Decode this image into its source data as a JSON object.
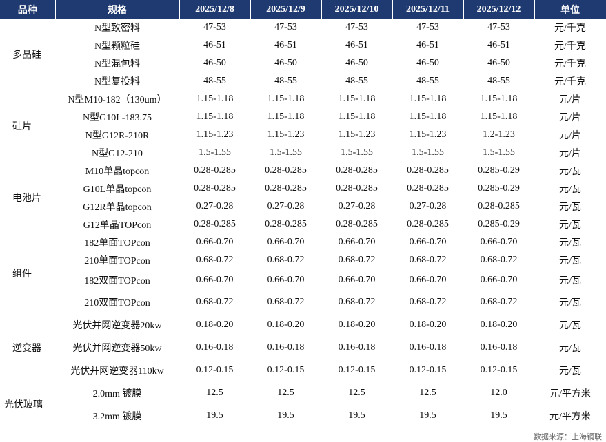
{
  "header": [
    "品种",
    "规格",
    "2025/12/8",
    "2025/12/9",
    "2025/12/10",
    "2025/12/11",
    "2025/12/12",
    "单位"
  ],
  "groups": [
    {
      "name": "多晶硅",
      "rows": [
        {
          "spec": "N型致密料",
          "values": [
            "47-53",
            "47-53",
            "47-53",
            "47-53",
            "47-53"
          ],
          "unit": "元/千克"
        },
        {
          "spec": "N型颗粒硅",
          "values": [
            "46-51",
            "46-51",
            "46-51",
            "46-51",
            "46-51"
          ],
          "unit": "元/千克"
        },
        {
          "spec": "N型混包料",
          "values": [
            "46-50",
            "46-50",
            "46-50",
            "46-50",
            "46-50"
          ],
          "unit": "元/千克"
        },
        {
          "spec": "N型复投料",
          "values": [
            "48-55",
            "48-55",
            "48-55",
            "48-55",
            "48-55"
          ],
          "unit": "元/千克"
        }
      ]
    },
    {
      "name": "硅片",
      "rows": [
        {
          "spec": "N型M10-182（130um）",
          "values": [
            "1.15-1.18",
            "1.15-1.18",
            "1.15-1.18",
            "1.15-1.18",
            "1.15-1.18"
          ],
          "unit": "元/片"
        },
        {
          "spec": "N型G10L-183.75",
          "values": [
            "1.15-1.18",
            "1.15-1.18",
            "1.15-1.18",
            "1.15-1.18",
            "1.15-1.18"
          ],
          "unit": "元/片"
        },
        {
          "spec": "N型G12R-210R",
          "values": [
            "1.15-1.23",
            "1.15-1.23",
            "1.15-1.23",
            "1.15-1.23",
            "1.2-1.23"
          ],
          "unit": "元/片"
        },
        {
          "spec": "N型G12-210",
          "values": [
            "1.5-1.55",
            "1.5-1.55",
            "1.5-1.55",
            "1.5-1.55",
            "1.5-1.55"
          ],
          "unit": "元/片"
        }
      ]
    },
    {
      "name": "电池片",
      "rows": [
        {
          "spec": "M10单晶topcon",
          "values": [
            "0.28-0.285",
            "0.28-0.285",
            "0.28-0.285",
            "0.28-0.285",
            "0.285-0.29"
          ],
          "unit": "元/瓦"
        },
        {
          "spec": "G10L单晶topcon",
          "values": [
            "0.28-0.285",
            "0.28-0.285",
            "0.28-0.285",
            "0.28-0.285",
            "0.285-0.29"
          ],
          "unit": "元/瓦"
        },
        {
          "spec": "G12R单晶topcon",
          "values": [
            "0.27-0.28",
            "0.27-0.28",
            "0.27-0.28",
            "0.27-0.28",
            "0.28-0.285"
          ],
          "unit": "元/瓦"
        },
        {
          "spec": "G12单晶TOPcon",
          "values": [
            "0.28-0.285",
            "0.28-0.285",
            "0.28-0.285",
            "0.28-0.285",
            "0.285-0.29"
          ],
          "unit": "元/瓦"
        }
      ]
    },
    {
      "name": "组件",
      "rows": [
        {
          "spec": "182单面TOPcon",
          "values": [
            "0.66-0.70",
            "0.66-0.70",
            "0.66-0.70",
            "0.66-0.70",
            "0.66-0.70"
          ],
          "unit": "元/瓦"
        },
        {
          "spec": "210单面TOPcon",
          "values": [
            "0.68-0.72",
            "0.68-0.72",
            "0.68-0.72",
            "0.68-0.72",
            "0.68-0.72"
          ],
          "unit": "元/瓦"
        },
        {
          "spec": "182双面TOPcon",
          "values": [
            "0.66-0.70",
            "0.66-0.70",
            "0.66-0.70",
            "0.66-0.70",
            "0.66-0.70"
          ],
          "unit": "元/瓦"
        },
        {
          "spec": "210双面TOPcon",
          "values": [
            "0.68-0.72",
            "0.68-0.72",
            "0.68-0.72",
            "0.68-0.72",
            "0.68-0.72"
          ],
          "unit": "元/瓦"
        }
      ]
    },
    {
      "name": "逆变器",
      "rows": [
        {
          "spec": "光伏并网逆变器20kw",
          "values": [
            "0.18-0.20",
            "0.18-0.20",
            "0.18-0.20",
            "0.18-0.20",
            "0.18-0.20"
          ],
          "unit": "元/瓦"
        },
        {
          "spec": "光伏并网逆变器50kw",
          "values": [
            "0.16-0.18",
            "0.16-0.18",
            "0.16-0.18",
            "0.16-0.18",
            "0.16-0.18"
          ],
          "unit": "元/瓦"
        },
        {
          "spec": "光伏并网逆变器110kw",
          "values": [
            "0.12-0.15",
            "0.12-0.15",
            "0.12-0.15",
            "0.12-0.15",
            "0.12-0.15"
          ],
          "unit": "元/瓦"
        }
      ]
    },
    {
      "name": "光伏玻璃",
      "rows": [
        {
          "spec": "2.0mm 镀膜",
          "values": [
            "12.5",
            "12.5",
            "12.5",
            "12.5",
            "12.0"
          ],
          "unit": "元/平方米"
        },
        {
          "spec": "3.2mm 镀膜",
          "values": [
            "19.5",
            "19.5",
            "19.5",
            "19.5",
            "19.5"
          ],
          "unit": "元/平方米"
        }
      ]
    }
  ],
  "source": "数据来源：上海钢联"
}
